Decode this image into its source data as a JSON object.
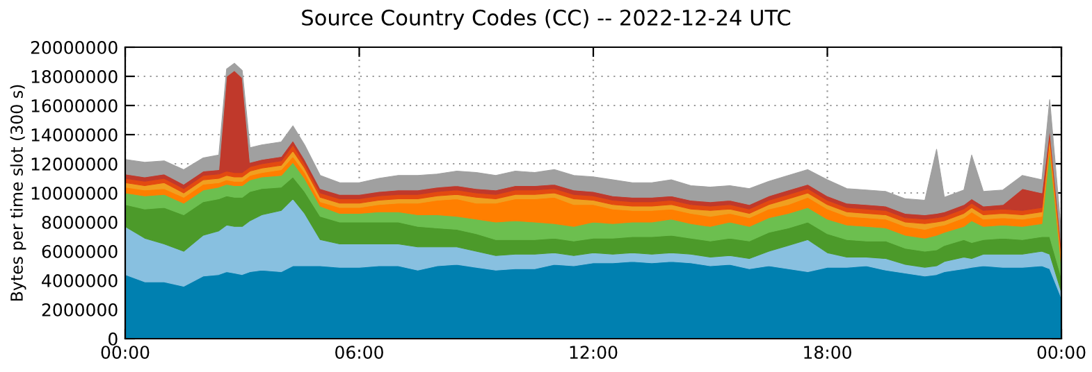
{
  "chart_data": {
    "type": "area",
    "stacked": true,
    "title": "Source Country Codes (CC) -- 2022-12-24 UTC",
    "ylabel": "Bytes per time slot (300 s)",
    "x": [
      0,
      0.5,
      1,
      1.5,
      2,
      2.4,
      2.6,
      2.8,
      3.0,
      3.2,
      3.5,
      4,
      4.3,
      4.6,
      5,
      5.5,
      6,
      6.5,
      7,
      7.5,
      8,
      8.5,
      9,
      9.5,
      10,
      10.5,
      11,
      11.5,
      12,
      12.5,
      13,
      13.5,
      14,
      14.5,
      15,
      15.5,
      16,
      16.5,
      17,
      17.5,
      18,
      18.5,
      19,
      19.5,
      20,
      20.5,
      20.8,
      21,
      21.5,
      21.7,
      22,
      22.5,
      23,
      23.5,
      23.7,
      24
    ],
    "series": [
      {
        "color": "#0080b0",
        "values": [
          4400000,
          3900000,
          3900000,
          3600000,
          4300000,
          4400000,
          4600000,
          4500000,
          4400000,
          4600000,
          4700000,
          4600000,
          5000000,
          5000000,
          5000000,
          4900000,
          4900000,
          5000000,
          5000000,
          4700000,
          5000000,
          5100000,
          4900000,
          4700000,
          4800000,
          4800000,
          5100000,
          5000000,
          5200000,
          5200000,
          5300000,
          5200000,
          5300000,
          5200000,
          5000000,
          5100000,
          4800000,
          5000000,
          4800000,
          4600000,
          4900000,
          4900000,
          5000000,
          4700000,
          4500000,
          4300000,
          4400000,
          4600000,
          4800000,
          4900000,
          5000000,
          4900000,
          4900000,
          5000000,
          4800000,
          2800000
        ]
      },
      {
        "color": "#88c0e0",
        "values": [
          3300000,
          3000000,
          2600000,
          2400000,
          2800000,
          3000000,
          3200000,
          3200000,
          3300000,
          3500000,
          3800000,
          4200000,
          4600000,
          3600000,
          1800000,
          1600000,
          1600000,
          1500000,
          1500000,
          1600000,
          1300000,
          1200000,
          1100000,
          1000000,
          1000000,
          1000000,
          800000,
          700000,
          700000,
          600000,
          600000,
          600000,
          600000,
          600000,
          600000,
          600000,
          700000,
          1000000,
          1600000,
          2200000,
          1000000,
          700000,
          600000,
          800000,
          600000,
          600000,
          600000,
          700000,
          800000,
          600000,
          800000,
          900000,
          900000,
          1000000,
          1000000,
          400000
        ]
      },
      {
        "color": "#4c9a2a",
        "values": [
          1500000,
          2000000,
          2500000,
          2500000,
          2300000,
          2200000,
          2000000,
          2000000,
          2000000,
          2000000,
          1800000,
          1600000,
          1500000,
          1500000,
          1600000,
          1500000,
          1500000,
          1500000,
          1500000,
          1400000,
          1300000,
          1200000,
          1200000,
          1100000,
          1000000,
          1000000,
          1000000,
          1000000,
          1000000,
          1100000,
          1100000,
          1200000,
          1200000,
          1100000,
          1100000,
          1200000,
          1200000,
          1300000,
          1200000,
          1200000,
          1300000,
          1200000,
          1100000,
          1200000,
          1100000,
          1100000,
          1100000,
          1100000,
          1200000,
          1100000,
          1000000,
          1100000,
          1000000,
          1000000,
          1200000,
          1000000
        ]
      },
      {
        "color": "#6cbf4f",
        "values": [
          800000,
          900000,
          900000,
          800000,
          800000,
          800000,
          800000,
          800000,
          800000,
          800000,
          800000,
          800000,
          1000000,
          900000,
          700000,
          600000,
          600000,
          700000,
          700000,
          800000,
          900000,
          900000,
          1000000,
          1200000,
          1300000,
          1200000,
          1000000,
          1000000,
          1100000,
          1000000,
          1000000,
          1000000,
          1100000,
          1000000,
          1000000,
          1100000,
          1000000,
          1000000,
          1000000,
          1000000,
          1000000,
          1000000,
          1000000,
          900000,
          900000,
          900000,
          1000000,
          900000,
          900000,
          1500000,
          900000,
          900000,
          900000,
          900000,
          6000000,
          800000
        ]
      },
      {
        "color": "#ff7f00",
        "values": [
          400000,
          400000,
          400000,
          400000,
          400000,
          300000,
          300000,
          300000,
          300000,
          300000,
          300000,
          400000,
          400000,
          400000,
          300000,
          400000,
          400000,
          500000,
          600000,
          800000,
          1000000,
          1200000,
          1100000,
          1300000,
          1500000,
          1600000,
          1800000,
          1500000,
          1200000,
          1000000,
          800000,
          800000,
          700000,
          700000,
          700000,
          600000,
          600000,
          600000,
          600000,
          700000,
          700000,
          600000,
          600000,
          600000,
          600000,
          600000,
          600000,
          500000,
          600000,
          600000,
          500000,
          500000,
          500000,
          500000,
          500000,
          400000
        ]
      },
      {
        "color": "#f0a020",
        "values": [
          300000,
          300000,
          400000,
          300000,
          300000,
          300000,
          300000,
          300000,
          300000,
          300000,
          300000,
          300000,
          400000,
          300000,
          300000,
          300000,
          300000,
          300000,
          300000,
          300000,
          300000,
          300000,
          400000,
          300000,
          300000,
          300000,
          300000,
          400000,
          300000,
          300000,
          300000,
          300000,
          300000,
          300000,
          400000,
          300000,
          300000,
          300000,
          400000,
          300000,
          300000,
          300000,
          300000,
          300000,
          300000,
          400000,
          300000,
          300000,
          300000,
          300000,
          300000,
          300000,
          300000,
          300000,
          300000,
          300000
        ]
      },
      {
        "color": "#e34a10",
        "values": [
          300000,
          300000,
          300000,
          300000,
          300000,
          300000,
          300000,
          300000,
          300000,
          300000,
          300000,
          300000,
          400000,
          300000,
          300000,
          300000,
          300000,
          300000,
          300000,
          300000,
          300000,
          300000,
          300000,
          300000,
          300000,
          300000,
          300000,
          300000,
          300000,
          300000,
          300000,
          300000,
          300000,
          300000,
          300000,
          300000,
          300000,
          300000,
          300000,
          300000,
          300000,
          300000,
          300000,
          300000,
          300000,
          300000,
          300000,
          300000,
          300000,
          300000,
          300000,
          300000,
          300000,
          300000,
          300000,
          300000
        ]
      },
      {
        "color": "#c0392b",
        "values": [
          300000,
          300000,
          300000,
          300000,
          300000,
          300000,
          6500000,
          7000000,
          6500000,
          300000,
          300000,
          300000,
          300000,
          300000,
          300000,
          300000,
          300000,
          300000,
          300000,
          300000,
          300000,
          300000,
          300000,
          300000,
          300000,
          300000,
          300000,
          300000,
          300000,
          300000,
          300000,
          300000,
          300000,
          300000,
          300000,
          300000,
          300000,
          300000,
          300000,
          300000,
          300000,
          300000,
          300000,
          300000,
          300000,
          300000,
          300000,
          300000,
          300000,
          300000,
          300000,
          300000,
          1500000,
          1000000,
          300000,
          300000
        ]
      },
      {
        "color": "#a0a0a0",
        "values": [
          1000000,
          1000000,
          900000,
          1000000,
          900000,
          1000000,
          500000,
          500000,
          500000,
          1000000,
          1000000,
          1000000,
          1000000,
          1000000,
          900000,
          800000,
          800000,
          900000,
          1000000,
          1000000,
          900000,
          1000000,
          1100000,
          1000000,
          1000000,
          900000,
          1000000,
          1000000,
          1000000,
          1100000,
          1000000,
          1000000,
          1100000,
          1000000,
          1000000,
          1000000,
          1100000,
          1000000,
          1000000,
          1000000,
          1100000,
          1000000,
          1000000,
          1000000,
          1000000,
          1000000,
          4400000,
          1000000,
          1000000,
          3000000,
          1000000,
          1000000,
          900000,
          900000,
          2000000,
          900000
        ]
      }
    ],
    "xlim": [
      0,
      24
    ],
    "xticks": [
      {
        "value": 0,
        "label": "00:00"
      },
      {
        "value": 6,
        "label": "06:00"
      },
      {
        "value": 12,
        "label": "12:00"
      },
      {
        "value": 18,
        "label": "18:00"
      },
      {
        "value": 24,
        "label": "00:00"
      }
    ],
    "ylim": [
      0,
      20000000
    ],
    "yticks": [
      0,
      2000000,
      4000000,
      6000000,
      8000000,
      10000000,
      12000000,
      14000000,
      16000000,
      18000000,
      20000000
    ],
    "grid": true
  }
}
